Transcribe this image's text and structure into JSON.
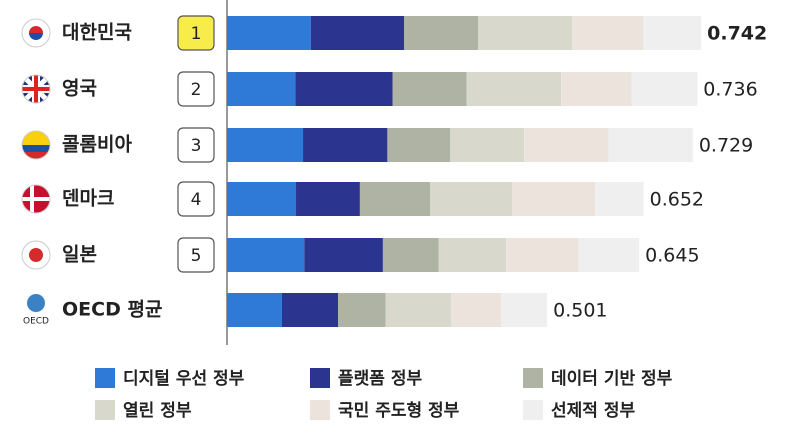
{
  "chart_data": {
    "type": "stacked-bar-horizontal",
    "categories": [
      "대한민국",
      "영국",
      "콜롬비아",
      "덴마크",
      "일본",
      "OECD 평균"
    ],
    "ranks": [
      1,
      2,
      3,
      4,
      5,
      null
    ],
    "totals": [
      0.742,
      0.736,
      0.729,
      0.652,
      0.645,
      0.501
    ],
    "series": [
      {
        "name": "디지털 우선 정부",
        "color": "#2f7ad6",
        "values": [
          0.131,
          0.107,
          0.119,
          0.108,
          0.121,
          0.086
        ]
      },
      {
        "name": "플랫폼 정부",
        "color": "#2b3590",
        "values": [
          0.146,
          0.152,
          0.132,
          0.1,
          0.123,
          0.088
        ]
      },
      {
        "name": "데이터 기반 정부",
        "color": "#aeb3a3",
        "values": [
          0.116,
          0.116,
          0.098,
          0.11,
          0.087,
          0.074
        ]
      },
      {
        "name": "열린 정부",
        "color": "#d8d8cd",
        "values": [
          0.147,
          0.148,
          0.116,
          0.128,
          0.106,
          0.103
        ]
      },
      {
        "name": "국민 주도형 정부",
        "color": "#ede3dd",
        "values": [
          0.111,
          0.11,
          0.132,
          0.13,
          0.113,
          0.078
        ]
      },
      {
        "name": "선제적 정부",
        "color": "#efefef",
        "values": [
          0.091,
          0.103,
          0.132,
          0.076,
          0.095,
          0.072
        ]
      }
    ]
  }
}
